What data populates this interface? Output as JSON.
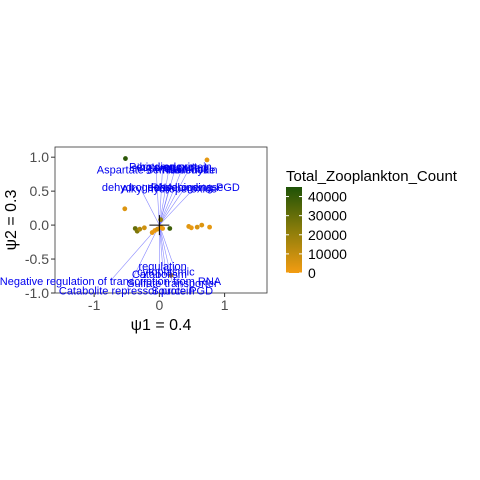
{
  "chart_data": {
    "type": "scatter",
    "title": "",
    "xlabel": "ψ1 = 0.4",
    "ylabel": "ψ2 = 0.3",
    "xlim": [
      -1.6,
      1.65
    ],
    "ylim": [
      -1.0,
      1.15
    ],
    "x_ticks": [
      -1,
      0,
      1
    ],
    "x_tick_labels": [
      "-1",
      "0",
      "1"
    ],
    "y_ticks": [
      1.0,
      0.5,
      0.0,
      -0.5,
      -1.0
    ],
    "y_tick_labels": [
      "1.0",
      "0.5",
      "0.0",
      "-0.5",
      "-1.0"
    ],
    "grid": false,
    "legend": {
      "title": "Total_Zooplankton_Count",
      "placement": "right",
      "colors": {
        "low": "#f39c12",
        "mid": "#8a7c0a",
        "high": "#1e5207"
      },
      "range": [
        0,
        45000
      ],
      "breaks": [
        40000,
        30000,
        20000,
        10000,
        0
      ],
      "labels": [
        "40000",
        "30000",
        "20000",
        "10000",
        "0"
      ]
    },
    "points": [
      {
        "x": -0.52,
        "y": 0.98,
        "count": 42000
      },
      {
        "x": 0.73,
        "y": 0.96,
        "count": 3000
      },
      {
        "x": -0.53,
        "y": 0.24,
        "count": 5000
      },
      {
        "x": -0.37,
        "y": -0.05,
        "count": 30000
      },
      {
        "x": -0.34,
        "y": -0.09,
        "count": 25000
      },
      {
        "x": -0.3,
        "y": -0.06,
        "count": 15000
      },
      {
        "x": -0.23,
        "y": -0.04,
        "count": 8000
      },
      {
        "x": -0.11,
        "y": -0.11,
        "count": 3000
      },
      {
        "x": -0.07,
        "y": -0.08,
        "count": 2000
      },
      {
        "x": -0.03,
        "y": -0.06,
        "count": 6000
      },
      {
        "x": 0.02,
        "y": -0.03,
        "count": 4000
      },
      {
        "x": 0.05,
        "y": -0.05,
        "count": 1000
      },
      {
        "x": 0.02,
        "y": 0.08,
        "count": 20000
      },
      {
        "x": 0.16,
        "y": -0.05,
        "count": 38000
      },
      {
        "x": 0.45,
        "y": -0.02,
        "count": 4000
      },
      {
        "x": 0.49,
        "y": -0.04,
        "count": 2000
      },
      {
        "x": 0.58,
        "y": -0.03,
        "count": 6000
      },
      {
        "x": 0.65,
        "y": 0.0,
        "count": 5000
      },
      {
        "x": 0.77,
        "y": -0.03,
        "count": 3000
      },
      {
        "x": 0.18,
        "y": -0.74,
        "count": 12000
      }
    ],
    "vectors": [
      {
        "x": -0.05,
        "y": 0.82,
        "label": "Aspartate-semialdehyde"
      },
      {
        "x": 0.05,
        "y": 0.86,
        "label": "Peroxiredoxin"
      },
      {
        "x": 0.15,
        "y": 0.85,
        "label": "single-stranded"
      },
      {
        "x": 0.25,
        "y": 0.86,
        "label": "binding protein"
      },
      {
        "x": 0.35,
        "y": 0.83,
        "label": "methionine"
      },
      {
        "x": 0.45,
        "y": 0.82,
        "label": "Thioredoxin"
      },
      {
        "x": -0.3,
        "y": 0.56,
        "label": "dehydrogenase"
      },
      {
        "x": 0.15,
        "y": 0.54,
        "label": "Alkyl hydroperoxide"
      },
      {
        "x": 0.4,
        "y": 0.56,
        "label": "dehydrogenase"
      },
      {
        "x": 0.55,
        "y": 0.56,
        "label": "RNA-binding PGD"
      },
      {
        "x": 0.05,
        "y": -0.6,
        "label": "regulation"
      },
      {
        "x": 0.0,
        "y": -0.72,
        "label": "Catabolism"
      },
      {
        "x": 0.1,
        "y": -0.68,
        "label": "cytoplasmic"
      },
      {
        "x": -0.75,
        "y": -0.82,
        "label": "Negative regulation of transcription from RNA"
      },
      {
        "x": -0.5,
        "y": -0.96,
        "label": "Catabolite repressor protein"
      },
      {
        "x": 0.35,
        "y": -0.96,
        "label": "Source PGD"
      },
      {
        "x": 0.2,
        "y": -0.85,
        "label": "Sulfate transporter"
      }
    ]
  }
}
